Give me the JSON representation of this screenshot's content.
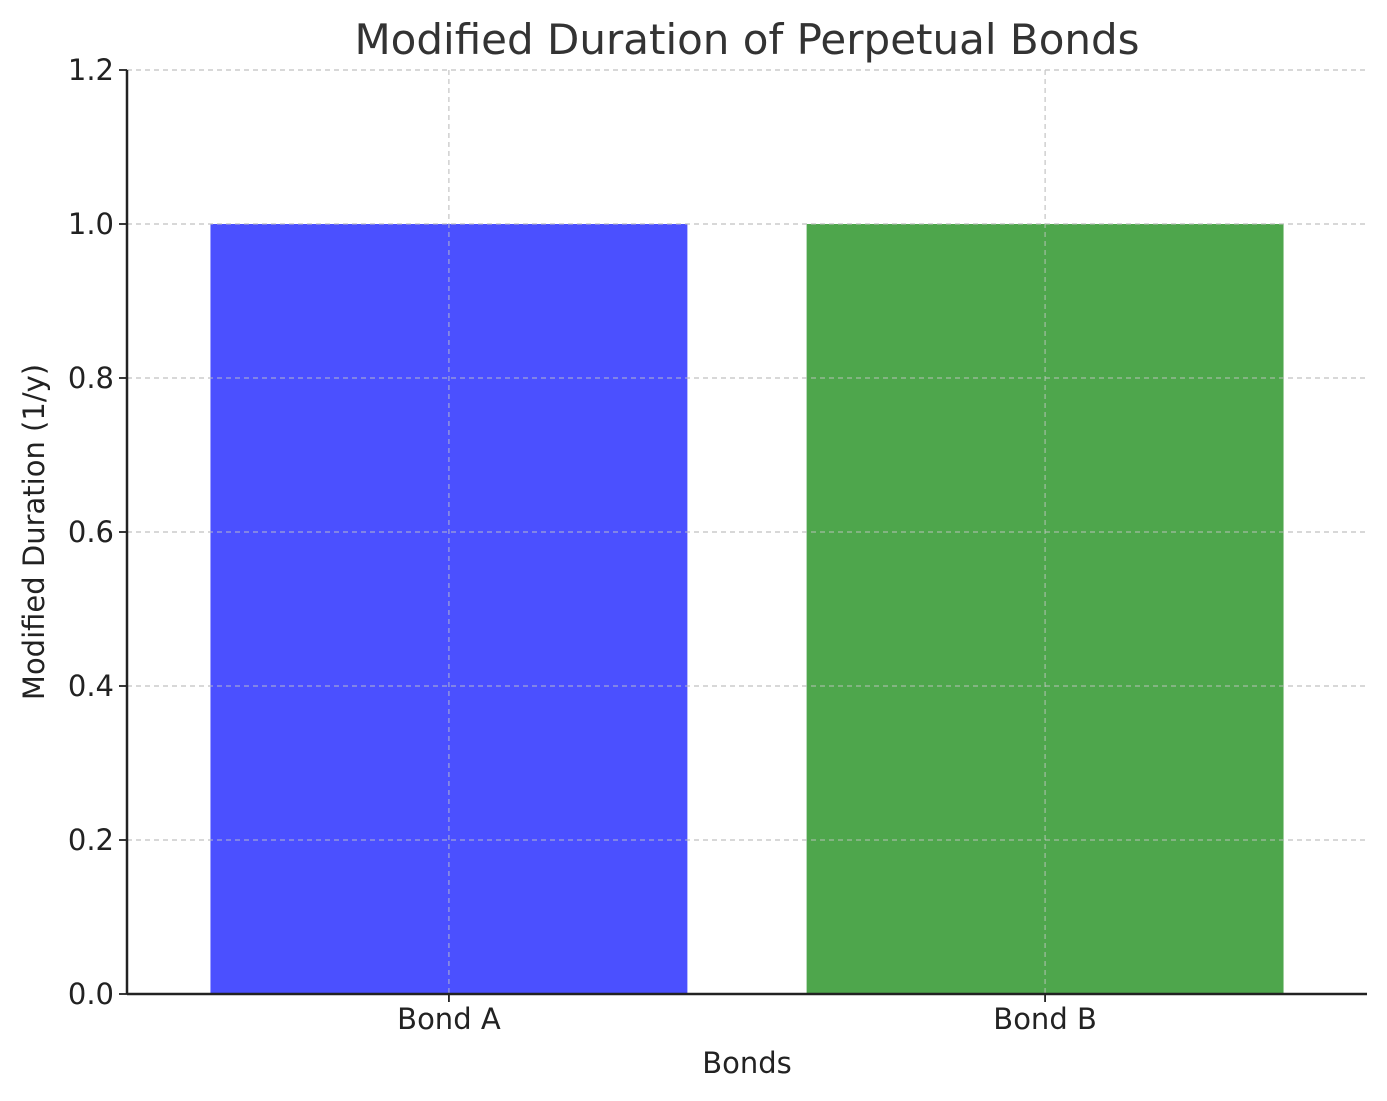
{
  "chart_data": {
    "type": "bar",
    "title": "Modified Duration of Perpetual Bonds",
    "xlabel": "Bonds",
    "ylabel": "Modified Duration (1/y)",
    "categories": [
      "Bond A",
      "Bond B"
    ],
    "values": [
      1.0,
      1.0
    ],
    "colors": [
      "#4b50ff",
      "#4ea64c"
    ],
    "ylim": [
      0,
      1.2
    ],
    "yticks": [
      "0.0",
      "0.2",
      "0.4",
      "0.6",
      "0.8",
      "1.0",
      "1.2"
    ],
    "grid": true,
    "legend": "none"
  }
}
